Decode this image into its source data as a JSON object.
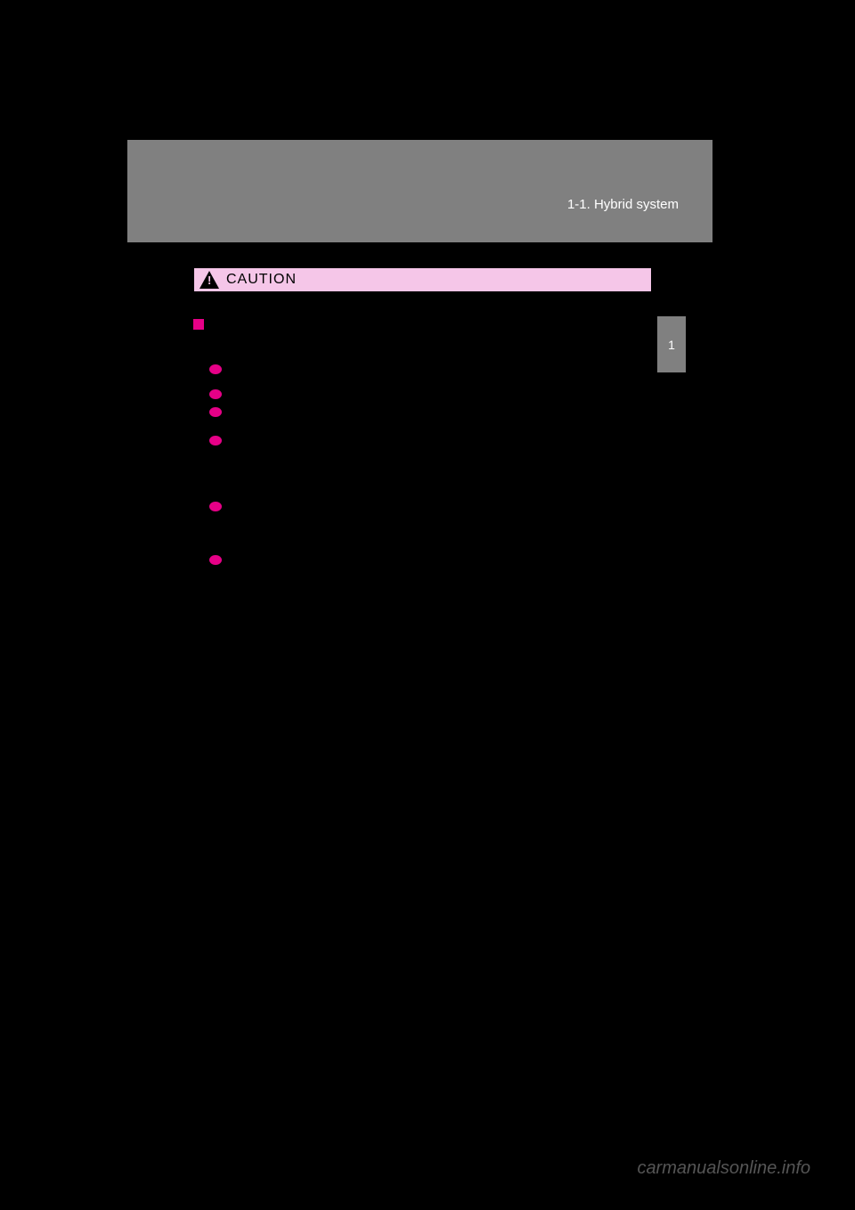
{
  "header": {
    "section_title": "1-1. Hybrid system"
  },
  "sidebar": {
    "chapter_number": "1"
  },
  "caution": {
    "label": "CAUTION",
    "header_bg": "#f5c6e8",
    "marker_color": "#e60087"
  },
  "watermark": "carmanualsonline.info",
  "colors": {
    "background": "#000000",
    "header_bg": "#808080",
    "sidebar_bg": "#808080",
    "text_white": "#ffffff"
  }
}
